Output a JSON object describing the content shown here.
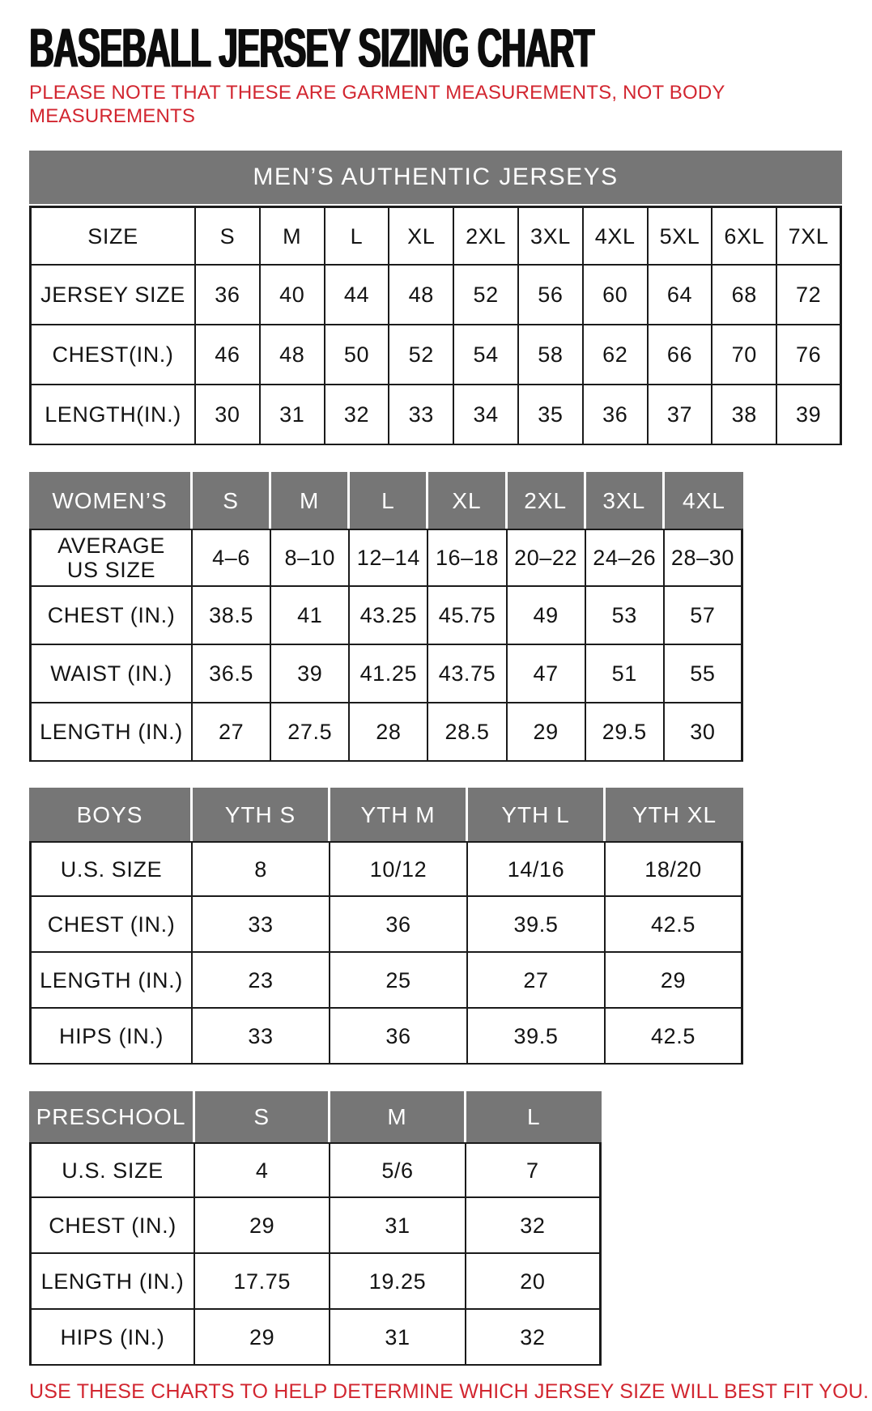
{
  "page": {
    "title": "BASEBALL JERSEY SIZING CHART",
    "note": "PLEASE NOTE THAT THESE ARE GARMENT MEASUREMENTS, NOT BODY MEASUREMENTS",
    "footer": "USE THESE CHARTS TO HELP DETERMINE WHICH JERSEY SIZE WILL BEST FIT YOU.",
    "colors": {
      "accent_red": "#d22630",
      "header_gray": "#767676",
      "border_black": "#1b1b1b"
    }
  },
  "chart_data": [
    {
      "type": "table",
      "title": "MEN’S AUTHENTIC JERSEYS",
      "header": [
        "SIZE",
        "S",
        "M",
        "L",
        "XL",
        "2XL",
        "3XL",
        "4XL",
        "5XL",
        "6XL",
        "7XL"
      ],
      "rows": [
        [
          "JERSEY SIZE",
          "36",
          "40",
          "44",
          "48",
          "52",
          "56",
          "60",
          "64",
          "68",
          "72"
        ],
        [
          "CHEST(IN.)",
          "46",
          "48",
          "50",
          "52",
          "54",
          "58",
          "62",
          "66",
          "70",
          "76"
        ],
        [
          "LENGTH(IN.)",
          "30",
          "31",
          "32",
          "33",
          "34",
          "35",
          "36",
          "37",
          "38",
          "39"
        ]
      ],
      "gray_header": false
    },
    {
      "type": "table",
      "title": "",
      "header": [
        "WOMEN’S",
        "S",
        "M",
        "L",
        "XL",
        "2XL",
        "3XL",
        "4XL"
      ],
      "rows": [
        [
          "AVERAGE\nUS SIZE",
          "4–6",
          "8–10",
          "12–14",
          "16–18",
          "20–22",
          "24–26",
          "28–30"
        ],
        [
          "CHEST (IN.)",
          "38.5",
          "41",
          "43.25",
          "45.75",
          "49",
          "53",
          "57"
        ],
        [
          "WAIST (IN.)",
          "36.5",
          "39",
          "41.25",
          "43.75",
          "47",
          "51",
          "55"
        ],
        [
          "LENGTH (IN.)",
          "27",
          "27.5",
          "28",
          "28.5",
          "29",
          "29.5",
          "30"
        ]
      ],
      "gray_header": true
    },
    {
      "type": "table",
      "title": "",
      "header": [
        "BOYS",
        "YTH S",
        "YTH M",
        "YTH L",
        "YTH XL"
      ],
      "rows": [
        [
          "U.S. SIZE",
          "8",
          "10/12",
          "14/16",
          "18/20"
        ],
        [
          "CHEST (IN.)",
          "33",
          "36",
          "39.5",
          "42.5"
        ],
        [
          "LENGTH (IN.)",
          "23",
          "25",
          "27",
          "29"
        ],
        [
          "HIPS (IN.)",
          "33",
          "36",
          "39.5",
          "42.5"
        ]
      ],
      "gray_header": true
    },
    {
      "type": "table",
      "title": "",
      "header": [
        "PRESCHOOL",
        "S",
        "M",
        "L"
      ],
      "rows": [
        [
          "U.S. SIZE",
          "4",
          "5/6",
          "7"
        ],
        [
          "CHEST (IN.)",
          "29",
          "31",
          "32"
        ],
        [
          "LENGTH (IN.)",
          "17.75",
          "19.25",
          "20"
        ],
        [
          "HIPS (IN.)",
          "29",
          "31",
          "32"
        ]
      ],
      "gray_header": true
    }
  ]
}
